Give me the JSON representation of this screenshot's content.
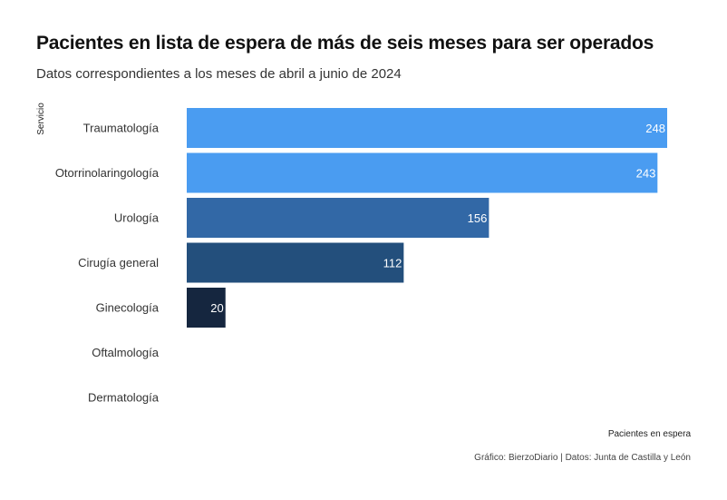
{
  "title": "Pacientes en lista de espera de más de seis meses para ser operados",
  "subtitle": "Datos correspondientes a los meses de abril a junio de 2024",
  "caption": "Gráfico: BierzoDiario | Datos: Junta de Castilla y León",
  "chart_data": {
    "type": "bar",
    "orientation": "horizontal",
    "title": "Pacientes en lista de espera de más de seis meses para ser operados",
    "subtitle": "Datos correspondientes a los meses de abril a junio de 2024",
    "xlabel": "Pacientes en espera",
    "ylabel": "Servicio",
    "categories": [
      "Traumatología",
      "Otorrinolaringología",
      "Urología",
      "Cirugía general",
      "Ginecología",
      "Oftalmología",
      "Dermatología"
    ],
    "values": [
      248,
      243,
      156,
      112,
      20,
      0,
      0
    ],
    "data_labels": [
      "248",
      "243",
      "156",
      "112",
      "20",
      "",
      ""
    ],
    "bar_colors": [
      "#4a9cf1",
      "#4a9cf1",
      "#3268a6",
      "#234f7c",
      "#15263f",
      "#15263f",
      "#15263f"
    ],
    "label_color": "#ffffff",
    "xlim": [
      0,
      248
    ],
    "grid": false,
    "legend": "none"
  }
}
